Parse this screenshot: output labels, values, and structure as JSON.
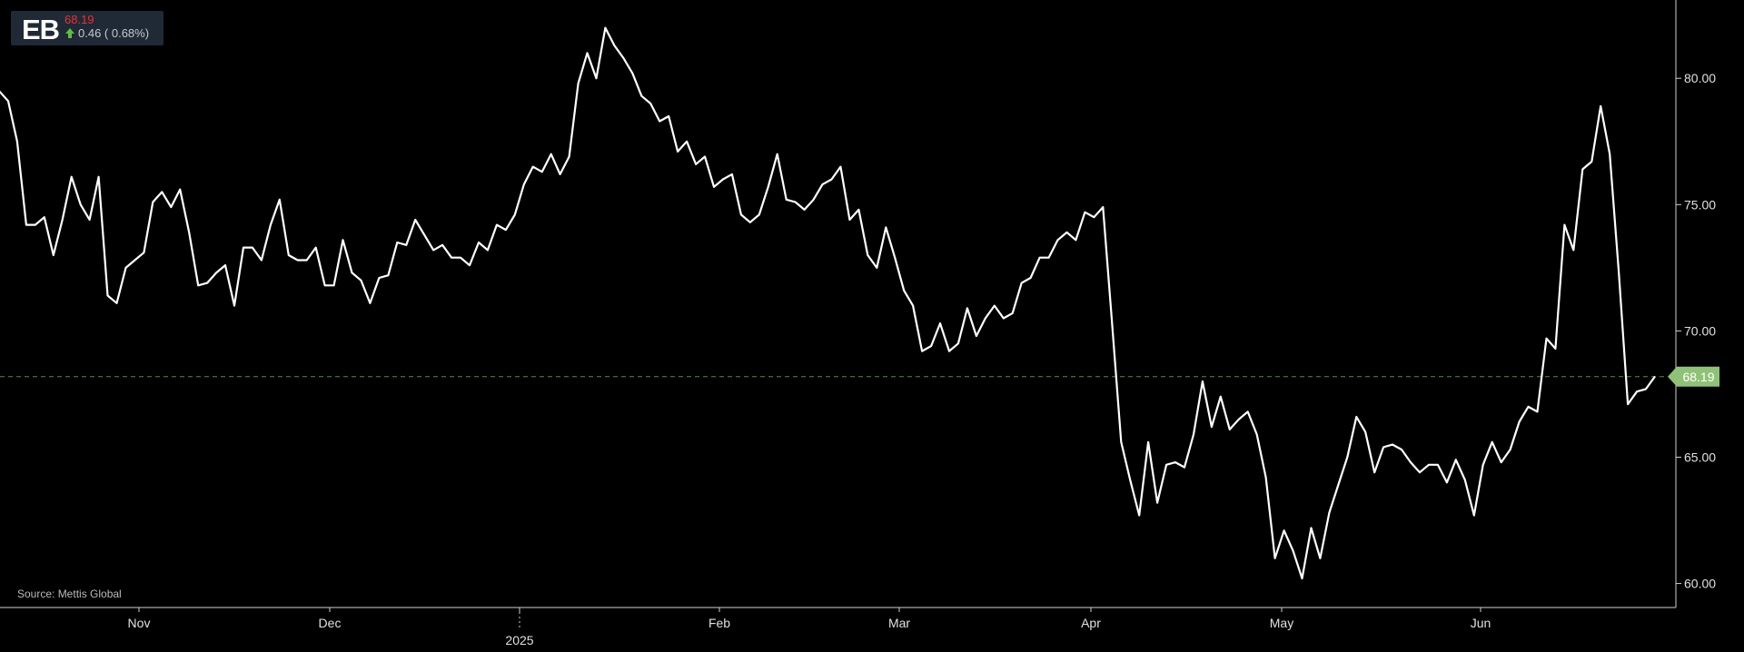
{
  "ticker": {
    "symbol": "EB",
    "price": "68.19",
    "change": "0.46 ( 0.68%)",
    "price_color": "#e63232",
    "change_direction": "up",
    "arrow_color": "#5fbf3a"
  },
  "source": "Source: Mettis Global",
  "chart_data": {
    "type": "line",
    "title": "",
    "xlabel": "",
    "ylabel": "",
    "ylim": [
      59.05,
      83.1
    ],
    "y_ticks": [
      "60.00",
      "65.00",
      "70.00",
      "75.00",
      "80.00"
    ],
    "x_ticks": [
      "Nov",
      "Dec",
      "2025",
      "Feb",
      "Mar",
      "Apr",
      "May",
      "Jun"
    ],
    "x_year_marker": "2025",
    "last_value_label": "68.19",
    "last_value": 68.19,
    "reference_line": {
      "value": 68.19,
      "style": "dashed",
      "color": "#5a8a4a"
    },
    "line_color": "#ffffff",
    "label_color": "#8fc276",
    "grid": false,
    "series": [
      {
        "values": [
          79.5,
          79.1,
          77.5,
          74.2,
          74.2,
          74.5,
          73.0,
          74.4,
          76.1,
          75.0,
          74.4,
          76.1,
          71.4,
          71.1,
          72.5,
          72.8,
          73.1,
          75.1,
          75.5,
          74.9,
          75.6,
          73.9,
          71.8,
          71.9,
          72.3,
          72.6,
          71.0,
          73.3,
          73.3,
          72.8,
          74.2,
          75.2,
          73.0,
          72.8,
          72.8,
          73.3,
          71.8,
          71.8,
          73.6,
          72.3,
          72.0,
          71.1,
          72.1,
          72.2,
          73.5,
          73.4,
          74.4,
          73.8,
          73.2,
          73.4,
          72.9,
          72.9,
          72.6,
          73.5,
          73.2,
          74.2,
          74.0,
          74.6,
          75.8,
          76.5,
          76.3,
          77.0,
          76.2,
          76.9,
          79.8,
          81.0,
          80.0,
          82.0,
          81.3,
          80.8,
          80.2,
          79.3,
          79.0,
          78.3,
          78.5,
          77.1,
          77.5,
          76.6,
          76.9,
          75.7,
          76.0,
          76.2,
          74.6,
          74.3,
          74.6,
          75.7,
          77.0,
          75.2,
          75.1,
          74.8,
          75.2,
          75.8,
          76.0,
          76.5,
          74.4,
          74.8,
          73.0,
          72.5,
          74.1,
          72.9,
          71.6,
          71.0,
          69.2,
          69.4,
          70.3,
          69.2,
          69.5,
          70.9,
          69.8,
          70.5,
          71.0,
          70.5,
          70.7,
          71.9,
          72.1,
          72.9,
          72.9,
          73.6,
          73.9,
          73.6,
          74.7,
          74.5,
          74.9,
          70.3,
          65.6,
          64.1,
          62.7,
          65.6,
          63.2,
          64.7,
          64.8,
          64.6,
          65.9,
          68.0,
          66.2,
          67.4,
          66.1,
          66.5,
          66.8,
          65.9,
          64.2,
          61.0,
          62.1,
          61.3,
          60.2,
          62.2,
          61.0,
          62.8,
          63.9,
          65.0,
          66.6,
          66.0,
          64.4,
          65.4,
          65.5,
          65.3,
          64.8,
          64.4,
          64.7,
          64.7,
          64.0,
          64.9,
          64.1,
          62.7,
          64.7,
          65.6,
          64.8,
          65.3,
          66.4,
          67.0,
          66.8,
          69.7,
          69.3,
          74.2,
          73.2,
          76.4,
          76.7,
          78.9,
          77.0,
          72.3,
          67.1,
          67.6,
          67.7,
          68.2
        ]
      }
    ]
  }
}
